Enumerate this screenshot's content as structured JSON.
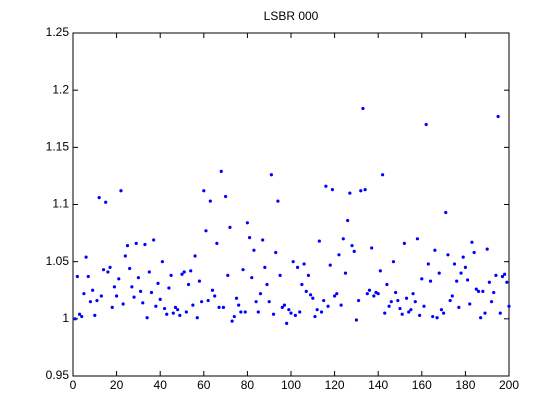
{
  "chart_data": {
    "type": "scatter",
    "title": "LSBR 000",
    "color": "#0000ff",
    "xlim": [
      0,
      200
    ],
    "xticks": [
      0,
      20,
      40,
      60,
      80,
      100,
      120,
      140,
      160,
      180,
      200
    ],
    "ylim": [
      0.95,
      1.25
    ],
    "yticks": [
      0.95,
      1,
      1.05,
      1.1,
      1.15,
      1.2,
      1.25
    ],
    "x": [
      1,
      2,
      3,
      4,
      5,
      6,
      7,
      8,
      9,
      10,
      11,
      12,
      13,
      14,
      15,
      16,
      17,
      18,
      19,
      20,
      21,
      22,
      23,
      24,
      25,
      26,
      27,
      28,
      29,
      30,
      31,
      32,
      33,
      34,
      35,
      36,
      37,
      38,
      39,
      40,
      41,
      42,
      43,
      44,
      45,
      46,
      47,
      48,
      49,
      50,
      51,
      52,
      53,
      54,
      55,
      56,
      57,
      58,
      59,
      60,
      61,
      62,
      63,
      64,
      65,
      66,
      67,
      68,
      69,
      70,
      71,
      72,
      73,
      74,
      75,
      76,
      77,
      78,
      79,
      80,
      81,
      82,
      83,
      84,
      85,
      86,
      87,
      88,
      89,
      90,
      91,
      92,
      93,
      94,
      95,
      96,
      97,
      98,
      99,
      100,
      101,
      102,
      103,
      104,
      105,
      106,
      107,
      108,
      109,
      110,
      111,
      112,
      113,
      114,
      115,
      116,
      117,
      118,
      119,
      120,
      121,
      122,
      123,
      124,
      125,
      126,
      127,
      128,
      129,
      130,
      131,
      132,
      133,
      134,
      135,
      136,
      137,
      138,
      139,
      140,
      141,
      142,
      143,
      144,
      145,
      146,
      147,
      148,
      149,
      150,
      151,
      152,
      153,
      154,
      155,
      156,
      157,
      158,
      159,
      160,
      161,
      162,
      163,
      164,
      165,
      166,
      167,
      168,
      169,
      170,
      171,
      172,
      173,
      174,
      175,
      176,
      177,
      178,
      179,
      180,
      181,
      182,
      183,
      184,
      185,
      186,
      187,
      188,
      189,
      190,
      191,
      192,
      193,
      194,
      195,
      196,
      197,
      198,
      199,
      200
    ],
    "values": [
      1.0,
      1.037,
      1.004,
      1.002,
      1.022,
      1.054,
      1.037,
      1.015,
      1.025,
      1.003,
      1.016,
      1.106,
      1.02,
      1.043,
      1.102,
      1.041,
      1.045,
      1.01,
      1.028,
      1.02,
      1.035,
      1.112,
      1.013,
      1.055,
      1.064,
      1.044,
      1.028,
      1.019,
      1.066,
      1.036,
      1.024,
      1.014,
      1.065,
      1.001,
      1.041,
      1.023,
      1.069,
      1.011,
      1.031,
      1.017,
      1.05,
      1.009,
      1.004,
      1.027,
      1.038,
      1.005,
      1.01,
      1.008,
      1.003,
      1.039,
      1.041,
      1.006,
      1.03,
      1.042,
      1.012,
      1.055,
      1.001,
      1.033,
      1.015,
      1.112,
      1.077,
      1.016,
      1.103,
      1.025,
      1.02,
      1.066,
      1.01,
      1.129,
      1.01,
      1.107,
      1.038,
      1.08,
      0.998,
      1.002,
      1.018,
      1.012,
      1.006,
      1.043,
      1.006,
      1.084,
      1.071,
      1.036,
      1.06,
      1.015,
      1.006,
      1.022,
      1.069,
      1.045,
      1.03,
      1.015,
      1.126,
      1.004,
      1.058,
      1.103,
      1.038,
      1.01,
      1.012,
      0.996,
      1.008,
      1.005,
      1.05,
      1.003,
      1.045,
      1.006,
      1.03,
      1.048,
      1.024,
      1.038,
      1.021,
      1.018,
      1.002,
      1.008,
      1.068,
      1.006,
      1.016,
      1.116,
      1.011,
      1.047,
      1.113,
      1.02,
      1.022,
      1.056,
      1.012,
      1.07,
      1.04,
      1.086,
      1.11,
      1.064,
      1.059,
      0.999,
      1.016,
      1.112,
      1.184,
      1.113,
      1.022,
      1.025,
      1.062,
      1.02,
      1.023,
      1.022,
      1.042,
      1.126,
      1.005,
      1.03,
      1.011,
      1.015,
      1.05,
      1.023,
      1.016,
      1.009,
      1.004,
      1.066,
      1.018,
      1.006,
      1.008,
      1.022,
      1.015,
      1.07,
      1.003,
      1.035,
      1.011,
      1.17,
      1.048,
      1.033,
      1.002,
      1.06,
      1.001,
      1.04,
      1.008,
      1.005,
      1.093,
      1.056,
      1.016,
      1.02,
      1.048,
      1.033,
      1.01,
      1.04,
      1.054,
      1.045,
      1.034,
      1.013,
      1.067,
      1.058,
      1.026,
      1.024,
      1.001,
      1.024,
      1.005,
      1.061,
      1.032,
      1.015,
      1.023,
      1.038,
      1.177,
      1.005,
      1.037,
      1.039,
      1.032,
      1.011
    ]
  }
}
